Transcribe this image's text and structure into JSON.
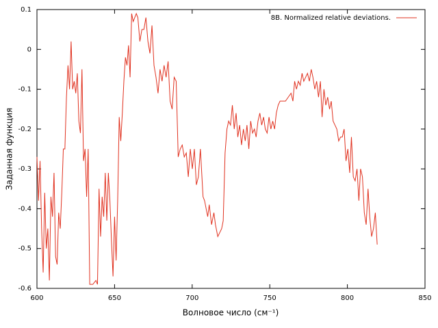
{
  "chart_data": {
    "type": "line",
    "xlabel": "Волновое число (см⁻¹)",
    "ylabel": "Заданная функция",
    "xlim": [
      600,
      850
    ],
    "xticks": [
      600,
      650,
      700,
      750,
      800,
      850
    ],
    "ylim": [
      -0.6,
      0.1
    ],
    "yticks": [
      0.1,
      0,
      -0.1,
      -0.2,
      -0.3,
      -0.4,
      -0.5,
      -0.6
    ],
    "legend": "top-right",
    "series": [
      {
        "name": "8B. Normalized relative deviations.",
        "color": "#e0301e",
        "x": [
          600,
          601,
          602,
          603,
          604,
          605,
          606,
          607,
          608,
          609,
          610,
          611,
          612,
          613,
          614,
          615,
          616,
          617,
          618,
          619,
          620,
          621,
          622,
          623,
          624,
          625,
          626,
          627,
          628,
          629,
          630,
          631,
          632,
          633,
          634,
          636,
          638,
          639,
          640,
          641,
          642,
          643,
          644,
          645,
          646,
          647,
          648,
          649,
          650,
          651,
          652,
          653,
          654,
          655,
          656,
          657,
          658,
          659,
          660,
          661,
          662,
          663,
          664,
          665,
          666.3,
          667.6,
          668.9,
          670.2,
          671.5,
          672.8,
          674.1,
          675.4,
          676.7,
          678,
          679.3,
          680.6,
          681.9,
          683.2,
          684.5,
          685.8,
          687.1,
          688.4,
          689.7,
          691,
          692.3,
          693.6,
          694.9,
          696.2,
          697.5,
          698.8,
          700.1,
          701.4,
          702.7,
          704,
          705.3,
          707,
          708,
          709,
          710,
          711,
          712.5,
          714,
          715,
          716.5,
          719,
          720,
          721.2,
          722.4,
          723.5,
          724.7,
          725.9,
          727.1,
          728.3,
          729.4,
          730.6,
          731.8,
          733,
          734.2,
          735.3,
          736.5,
          737.7,
          738.9,
          740.1,
          741.2,
          742.4,
          743.6,
          744.8,
          746,
          747.1,
          748.3,
          749.5,
          750.7,
          751.9,
          753.1,
          754.2,
          755.4,
          756.6,
          760.1,
          763.7,
          764.9,
          766,
          767.2,
          768.4,
          769.6,
          770.8,
          771.9,
          773.1,
          774.3,
          775.5,
          776.7,
          777.8,
          779,
          780.2,
          781.4,
          782.6,
          783.7,
          784.9,
          786.1,
          787.3,
          788.5,
          789.6,
          790.8,
          792,
          793.2,
          794.4,
          795.6,
          796.7,
          797.9,
          799.1,
          800.3,
          801.5,
          802.6,
          803.8,
          805,
          806.2,
          807.4,
          808.5,
          809.7,
          810.9,
          812.1,
          813.3,
          814.4,
          815.6,
          816.8,
          818,
          819.2
        ],
        "values": [
          -0.27,
          -0.38,
          -0.28,
          -0.45,
          -0.56,
          -0.36,
          -0.5,
          -0.45,
          -0.58,
          -0.37,
          -0.42,
          -0.31,
          -0.52,
          -0.54,
          -0.41,
          -0.45,
          -0.36,
          -0.25,
          -0.25,
          -0.12,
          -0.04,
          -0.1,
          0.02,
          -0.1,
          -0.08,
          -0.11,
          -0.06,
          -0.18,
          -0.21,
          -0.05,
          -0.28,
          -0.25,
          -0.37,
          -0.25,
          -0.59,
          -0.59,
          -0.58,
          -0.59,
          -0.35,
          -0.47,
          -0.37,
          -0.42,
          -0.31,
          -0.43,
          -0.31,
          -0.38,
          -0.48,
          -0.57,
          -0.42,
          -0.53,
          -0.38,
          -0.17,
          -0.23,
          -0.16,
          -0.08,
          -0.02,
          -0.04,
          0.01,
          -0.07,
          0.09,
          0.07,
          0.08,
          0.09,
          0.08,
          0.02,
          0.05,
          0.05,
          0.08,
          0.02,
          -0.01,
          0.06,
          -0.04,
          -0.07,
          -0.11,
          -0.05,
          -0.08,
          -0.04,
          -0.07,
          -0.03,
          -0.13,
          -0.15,
          -0.07,
          -0.08,
          -0.27,
          -0.25,
          -0.24,
          -0.27,
          -0.26,
          -0.32,
          -0.25,
          -0.3,
          -0.25,
          -0.34,
          -0.32,
          -0.25,
          -0.37,
          -0.38,
          -0.4,
          -0.42,
          -0.39,
          -0.44,
          -0.41,
          -0.44,
          -0.47,
          -0.45,
          -0.43,
          -0.26,
          -0.2,
          -0.18,
          -0.19,
          -0.14,
          -0.2,
          -0.16,
          -0.22,
          -0.19,
          -0.24,
          -0.2,
          -0.23,
          -0.19,
          -0.25,
          -0.18,
          -0.21,
          -0.2,
          -0.22,
          -0.18,
          -0.16,
          -0.19,
          -0.17,
          -0.2,
          -0.21,
          -0.17,
          -0.2,
          -0.18,
          -0.2,
          -0.16,
          -0.14,
          -0.13,
          -0.13,
          -0.11,
          -0.13,
          -0.08,
          -0.1,
          -0.08,
          -0.09,
          -0.06,
          -0.08,
          -0.07,
          -0.06,
          -0.08,
          -0.05,
          -0.07,
          -0.1,
          -0.08,
          -0.12,
          -0.08,
          -0.17,
          -0.1,
          -0.14,
          -0.12,
          -0.15,
          -0.13,
          -0.18,
          -0.19,
          -0.2,
          -0.23,
          -0.22,
          -0.22,
          -0.2,
          -0.28,
          -0.25,
          -0.31,
          -0.22,
          -0.32,
          -0.33,
          -0.3,
          -0.38,
          -0.3,
          -0.32,
          -0.41,
          -0.44,
          -0.35,
          -0.42,
          -0.47,
          -0.45,
          -0.41,
          -0.49
        ]
      }
    ]
  }
}
